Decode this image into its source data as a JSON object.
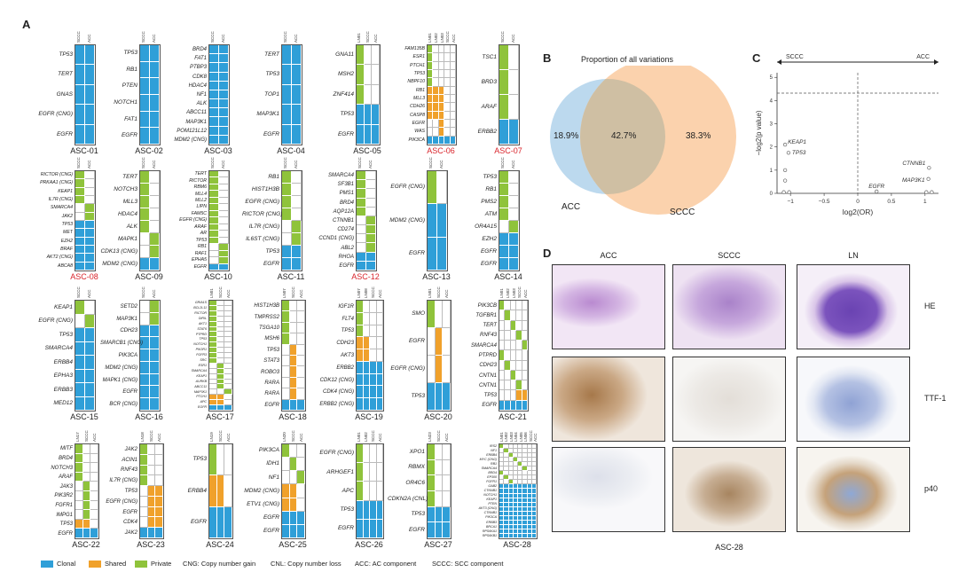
{
  "panels": {
    "A": "A",
    "B": "B",
    "C": "C",
    "D": "D"
  },
  "colors": {
    "clonal": "#2f9fd8",
    "shared": "#f0a12b",
    "private": "#8fc33b",
    "empty": "#ffffff"
  },
  "cases": [
    {
      "id": "ASC-01",
      "highlight": false,
      "cols": [
        "SCCC",
        "ACC"
      ],
      "genes": [
        "TP53",
        "TERT",
        "GNAS",
        "EGFR (CNG)",
        "EGFR"
      ],
      "rows": [
        "CC",
        "CC",
        "CC",
        "CC",
        "CC"
      ]
    },
    {
      "id": "ASC-02",
      "highlight": false,
      "cols": [
        "SCCC",
        "ACC"
      ],
      "genes": [
        "TP53",
        "RB1",
        "PTEN",
        "NOTCH1",
        "FAT1",
        "EGFR"
      ],
      "rows": [
        "CC",
        "CC",
        "CC",
        "CC",
        "CC",
        "CC"
      ]
    },
    {
      "id": "ASC-03",
      "highlight": false,
      "cols": [
        "SCCC",
        "ACC"
      ],
      "genes": [
        "BRD4",
        "FAT1",
        "PTBP3",
        "CDK8",
        "HDAC4",
        "NF1",
        "ALK",
        "ABCC11",
        "MAP3K1",
        "POM121L12",
        "MDM2 (CNG)"
      ],
      "rows": [
        "CC",
        "CC",
        "CC",
        "CC",
        "CC",
        "CC",
        "CC",
        "CC",
        "CC",
        "CC",
        "CC"
      ]
    },
    {
      "id": "ASC-04",
      "highlight": false,
      "cols": [
        "SCCC",
        "ACC"
      ],
      "genes": [
        "TERT",
        "TP53",
        "TOP1",
        "MAP3K1",
        "EGFR"
      ],
      "rows": [
        "CC",
        "CC",
        "CC",
        "CC",
        "CC"
      ]
    },
    {
      "id": "ASC-05",
      "highlight": false,
      "cols": [
        "LN01",
        "SCCC",
        "ACC"
      ],
      "genes": [
        "GNA11",
        "MSH2",
        "ZNF414",
        "TP53",
        "EGFR"
      ],
      "rows": [
        "P00",
        "P00",
        "P00",
        "CCC",
        "CCC"
      ]
    },
    {
      "id": "ASC-06",
      "highlight": true,
      "cols": [
        "LN01",
        "LN02",
        "LN03",
        "SCCC",
        "ACC"
      ],
      "genes": [
        "FAM135B",
        "ESR1",
        "PTCH1",
        "TP53",
        "NBPF10",
        "RB1",
        "MLL3",
        "CDH26",
        "CASP8",
        "EGFR",
        "WAS",
        "PIK3CA"
      ],
      "rows": [
        "P0000",
        "P0000",
        "P0000",
        "P0000",
        "P0000",
        "SSS00",
        "SSS00",
        "SSS00",
        "SSS00",
        "00S00",
        "00S00",
        "CCCCC"
      ]
    },
    {
      "id": "ASC-07",
      "highlight": true,
      "cols": [
        "SCCC",
        "ACC"
      ],
      "genes": [
        "TSC1",
        "BRD3",
        "ARAF",
        "ERBB2"
      ],
      "rows": [
        "P0",
        "P0",
        "P0",
        "CC"
      ]
    },
    {
      "id": "ASC-08",
      "highlight": true,
      "cols": [
        "SCCC",
        "ACC"
      ],
      "genes": [
        "RICTOR (CNG)",
        "PRKAA1 (CNG)",
        "KEAP1",
        "IL7R (CNG)",
        "SMARCA4",
        "JAK2",
        "TP53",
        "MET",
        "EZH2",
        "BRAF",
        "AKT2 (CNG)",
        "ABCA8"
      ],
      "rows": [
        "P0",
        "P0",
        "P0",
        "P0",
        "0P",
        "0P",
        "CC",
        "CC",
        "CC",
        "CC",
        "CC",
        "CC"
      ]
    },
    {
      "id": "ASC-09",
      "highlight": false,
      "cols": [
        "SCCC",
        "ACC"
      ],
      "genes": [
        "TERT",
        "NOTCH3",
        "MLL3",
        "HDAC4",
        "ALK",
        "MAPK1",
        "CDK13 (CNG)",
        "MDM2 (CNG)"
      ],
      "rows": [
        "P0",
        "P0",
        "P0",
        "P0",
        "P0",
        "0P",
        "0P",
        "CC"
      ]
    },
    {
      "id": "ASC-10",
      "highlight": false,
      "cols": [
        "SCCC",
        "ACC"
      ],
      "genes": [
        "TERT",
        "RICTOR",
        "RBM6",
        "MLL4",
        "MLL2",
        "LIPN",
        "FAM5C",
        "EGFR (CNG)",
        "ARAF",
        "AR",
        "TP53",
        "RB1",
        "RAF1",
        "EPHA5",
        "EGFR"
      ],
      "rows": [
        "P0",
        "P0",
        "P0",
        "P0",
        "P0",
        "P0",
        "P0",
        "P0",
        "P0",
        "P0",
        "P0",
        "0P",
        "0P",
        "0P",
        "CC"
      ]
    },
    {
      "id": "ASC-11",
      "highlight": false,
      "cols": [
        "SCCC",
        "ACC"
      ],
      "genes": [
        "RB1",
        "HIST1H3B",
        "EGFR (CNG)",
        "RICTOR (CNG)",
        "IL7R (CNG)",
        "IL6ST (CNG)",
        "TP53",
        "EGFR"
      ],
      "rows": [
        "P0",
        "P0",
        "P0",
        "P0",
        "0P",
        "0P",
        "CC",
        "CC"
      ]
    },
    {
      "id": "ASC-12",
      "highlight": true,
      "cols": [
        "SCCC",
        "ACC"
      ],
      "genes": [
        "SMARCA4",
        "SF3B1",
        "PMS1",
        "BRD4",
        "AQP12A",
        "CTNNB1",
        "CD274",
        "CCND1 (CNG)",
        "ABL2",
        "RHOA",
        "EGFR"
      ],
      "rows": [
        "P0",
        "P0",
        "P0",
        "P0",
        "P0",
        "0P",
        "0P",
        "0P",
        "0P",
        "CC",
        "CC"
      ]
    },
    {
      "id": "ASC-13",
      "highlight": false,
      "cols": [
        "SCCC",
        "ACC"
      ],
      "genes": [
        "EGFR (CNG)",
        "MDM2 (CNG)",
        "EGFR"
      ],
      "rows": [
        "P0",
        "CC",
        "CC"
      ]
    },
    {
      "id": "ASC-14",
      "highlight": false,
      "cols": [
        "SCCC",
        "ACC"
      ],
      "genes": [
        "TP53",
        "RB1",
        "PMS2",
        "ATM",
        "OR4A15",
        "EZH2",
        "EGFR",
        "EGFR"
      ],
      "rows": [
        "P0",
        "P0",
        "P0",
        "P0",
        "0P",
        "CC",
        "CC",
        "CC"
      ]
    },
    {
      "id": "ASC-15",
      "highlight": false,
      "cols": [
        "SCCC",
        "ACC"
      ],
      "genes": [
        "KEAP1",
        "EGFR (CNG)",
        "TP53",
        "SMARCA4",
        "ERBB4",
        "EPHA3",
        "ERBB3",
        "MED12"
      ],
      "rows": [
        "P0",
        "0P",
        "CC",
        "CC",
        "CC",
        "CC",
        "CC",
        "CC"
      ]
    },
    {
      "id": "ASC-16",
      "highlight": false,
      "cols": [
        "SCCC",
        "ACC"
      ],
      "genes": [
        "SETD2",
        "MAP3K1",
        "CDH23",
        "SMARCB1 (CNG)",
        "PIK3CA",
        "MDM2 (CNG)",
        "MAPK1 (CNG)",
        "EGFR",
        "BCR (CNG)"
      ],
      "rows": [
        "0P",
        "0P",
        "CC",
        "CC",
        "CC",
        "CC",
        "CC",
        "CC",
        "CC"
      ]
    },
    {
      "id": "ASC-17",
      "highlight": false,
      "cols": [
        "LN01",
        "SCCC",
        "ACC"
      ],
      "genes": [
        "GRIA1S",
        "BCL2L11",
        "RICTOR",
        "DIRIL",
        "AKT1",
        "STAT6",
        "PTPRD",
        "TP53",
        "NOTCH1",
        "PIK3R1",
        "FGFR3",
        "SRC",
        "ESR1",
        "SMARCA4",
        "KEAP1",
        "AURKB",
        "ABCC11",
        "MAP3K1",
        "PTCH1",
        "APC",
        "EGFR"
      ],
      "rows": [
        "P00",
        "P00",
        "P00",
        "P00",
        "P00",
        "P00",
        "P00",
        "P00",
        "P00",
        "P00",
        "P00",
        "P00",
        "0P0",
        "0P0",
        "0P0",
        "0P0",
        "0P0",
        "00P",
        "SS0",
        "SS0",
        "CCC"
      ]
    },
    {
      "id": "ASC-18",
      "highlight": false,
      "cols": [
        "LN07",
        "SCCC",
        "ACC"
      ],
      "genes": [
        "HIST1H3B",
        "TMPRSS2",
        "TSGA10",
        "MSH6",
        "TP53",
        "STAT3",
        "ROBO3",
        "RARA",
        "RARA",
        "EGFR"
      ],
      "rows": [
        "P00",
        "P00",
        "P00",
        "P00",
        "0S0",
        "0S0",
        "0S0",
        "0S0",
        "0S0",
        "CCC"
      ]
    },
    {
      "id": "ASC-19",
      "highlight": false,
      "cols": [
        "LN07",
        "LN08",
        "SCCC",
        "ACC"
      ],
      "genes": [
        "IGF1R",
        "FLT4",
        "TP53",
        "CDH23",
        "AKT3",
        "ERBB2",
        "CDK12 (CNG)",
        "CDK4 (CNG)",
        "ERBB2 (CNG)"
      ],
      "rows": [
        "P000",
        "P000",
        "P000",
        "SS00",
        "SS00",
        "CCCC",
        "CCCC",
        "CCCC",
        "CCCC"
      ]
    },
    {
      "id": "ASC-20",
      "highlight": false,
      "cols": [
        "LN01",
        "SCCC",
        "ACC"
      ],
      "genes": [
        "SMO",
        "EGFR",
        "EGFR (CNG)",
        "TP53"
      ],
      "rows": [
        "P00",
        "0S0",
        "0S0",
        "CCC"
      ]
    },
    {
      "id": "ASC-21",
      "highlight": false,
      "cols": [
        "LN01",
        "LN02",
        "LN03",
        "SCCC",
        "ACC"
      ],
      "genes": [
        "PIK3CB",
        "TGFBR1",
        "TERT",
        "RNF43",
        "SMARCA4",
        "PTPRD",
        "CDH23",
        "CNTN1",
        "CNTN1",
        "TP53",
        "EGFR"
      ],
      "rows": [
        "P0000",
        "0P000",
        "00P00",
        "000P0",
        "0000P",
        "P0000",
        "0P000",
        "00P00",
        "000P0",
        "000SS",
        "CCCCC"
      ]
    },
    {
      "id": "ASC-22",
      "highlight": false,
      "cols": [
        "LN17",
        "SCCC",
        "ACC"
      ],
      "genes": [
        "MITF",
        "BRD4",
        "NOTCH3",
        "ARAF",
        "JAK3",
        "PIK3R2",
        "FGFR1",
        "IMPG1",
        "TP53",
        "EGFR"
      ],
      "rows": [
        "P00",
        "P00",
        "P00",
        "P00",
        "0P0",
        "0P0",
        "0P0",
        "0P0",
        "SS0",
        "CCC"
      ]
    },
    {
      "id": "ASC-23",
      "highlight": false,
      "cols": [
        "LN18",
        "SCCC",
        "ACC"
      ],
      "genes": [
        "JAK2",
        "ACIN1",
        "RNF43",
        "IL7R (CNG)",
        "TP53",
        "EGFR (CNG)",
        "EGFR",
        "CDK4",
        "JAK2"
      ],
      "rows": [
        "P00",
        "P00",
        "P00",
        "P00",
        "0SS",
        "0SS",
        "0SS",
        "0SS",
        "CCC"
      ]
    },
    {
      "id": "ASC-24",
      "highlight": false,
      "cols": [
        "LN19",
        "SCCC",
        "ACC"
      ],
      "genes": [
        "TP53",
        "ERBB4",
        "EGFR"
      ],
      "rows": [
        "P00",
        "SS0",
        "CCC"
      ]
    },
    {
      "id": "ASC-25",
      "highlight": false,
      "cols": [
        "LN20",
        "SCCC",
        "ACC"
      ],
      "genes": [
        "PIK3CA",
        "IDH1",
        "NF1",
        "MDM2 (CNG)",
        "ETV1 (CNG)",
        "EGFR",
        "EGFR"
      ],
      "rows": [
        "P00",
        "0P0",
        "00P",
        "SS0",
        "SS0",
        "CCC",
        "CCC"
      ]
    },
    {
      "id": "ASC-26",
      "highlight": false,
      "cols": [
        "LN01",
        "LN02",
        "SCCC",
        "ACC"
      ],
      "genes": [
        "EGFR (CNG)",
        "ARHGEF1",
        "APC",
        "TP53",
        "EGFR"
      ],
      "rows": [
        "P000",
        "P000",
        "P000",
        "CCCC",
        "CCCC"
      ]
    },
    {
      "id": "ASC-27",
      "highlight": false,
      "cols": [
        "LN23",
        "SCCC",
        "ACC"
      ],
      "genes": [
        "XPO1",
        "RBMX",
        "OR4C6",
        "CDKN2A (CNL)",
        "TP53",
        "EGFR"
      ],
      "rows": [
        "P00",
        "P00",
        "P00",
        "P00",
        "CCC",
        "CCC"
      ]
    },
    {
      "id": "ASC-28",
      "highlight": false,
      "cols": [
        "LN01",
        "LN02",
        "LN03",
        "LN04",
        "LN05",
        "LN06",
        "SCCC",
        "ACC"
      ],
      "genes": [
        "IRS2",
        "NF1",
        "ERBB4",
        "MYC (CNG)",
        "RB1",
        "SMARCA4",
        "BRD4",
        "EP300",
        "FGFR1",
        "GAB2",
        "CTNNB1",
        "NOTCH1",
        "KEAP1",
        "PTEN",
        "AKT3 (CNG)",
        "CTNNB1",
        "PIK3CA",
        "ERBB3",
        "BRCA1",
        "RPS6KA1",
        "RPS6KB1"
      ],
      "rows": [
        "P0000000",
        "0P000000",
        "00P00000",
        "000P0000",
        "0000P000",
        "00000P00",
        "P0000000",
        "0P000000",
        "00P00000",
        "CCCCCCCC",
        "CCCCCCCC",
        "CCCCCCCC",
        "CCCCCCCC",
        "CCCCCCCC",
        "CCCCCCCC",
        "CCCCCCCC",
        "CCCCCCCC",
        "CCCCCCCC",
        "CCCCCCCC",
        "CCCCCCCC",
        "CCCCCCCC"
      ]
    }
  ],
  "legend": {
    "clonal": "Clonal",
    "shared": "Shared",
    "private": "Private",
    "cng": "CNG: Copy number gain",
    "cnl": "CNL: Copy number loss",
    "acc": "ACC: AC component",
    "sccc": "SCCC: SCC component"
  },
  "venn": {
    "title": "Proportion of all variations",
    "left_label": "ACC",
    "right_label": "SCCC",
    "left_pct": "18.9%",
    "mid_pct": "42.7%",
    "right_pct": "38.3%",
    "left_color": "#bcd9ee",
    "right_color": "#fbd2ad",
    "overlap_color": "#cfbfa3"
  },
  "volcano": {
    "arrow_left": "SCCC",
    "arrow_right": "ACC",
    "ylabel": "−log2(p value)",
    "xlabel": "log2(OR)",
    "yticks": [
      "0",
      "1",
      "2",
      "3",
      "4",
      "5"
    ],
    "xticks": [
      "−1",
      "−0.5",
      "0",
      "0.5",
      "1"
    ],
    "labels": {
      "keap1": "KEAP1",
      "tp53": "TP53",
      "ctnnb1": "CTNNB1",
      "map3k1": "MAP3K1",
      "egfr": "EGFR"
    }
  },
  "chart_data": {
    "type": "scatter",
    "title": "",
    "xlabel": "log2(OR)",
    "ylabel": "−log2(p value)",
    "xlim": [
      -1.2,
      1.2
    ],
    "ylim": [
      0,
      5.2
    ],
    "threshold_y": 4.32,
    "threshold_x": 0,
    "points": [
      {
        "x": -1.08,
        "y": 2.1,
        "label": "KEAP1"
      },
      {
        "x": -1.03,
        "y": 1.75,
        "label": "TP53"
      },
      {
        "x": -1.08,
        "y": 1.0,
        "label": ""
      },
      {
        "x": -1.08,
        "y": 0.55,
        "label": ""
      },
      {
        "x": -1.1,
        "y": 0.05,
        "label": ""
      },
      {
        "x": -1.02,
        "y": 0.05,
        "label": ""
      },
      {
        "x": 0.28,
        "y": 0.08,
        "label": "EGFR"
      },
      {
        "x": 1.06,
        "y": 1.1,
        "label": "CTNNB1"
      },
      {
        "x": 1.05,
        "y": 0.62,
        "label": "MAP3K1"
      },
      {
        "x": 1.02,
        "y": 0.05,
        "label": ""
      },
      {
        "x": 1.1,
        "y": 0.05,
        "label": ""
      }
    ]
  },
  "micro": {
    "col_titles": [
      "ACC",
      "SCCC",
      "LN"
    ],
    "row_labels": [
      "HE",
      "TTF-1",
      "p40"
    ],
    "caption": "ASC-28"
  }
}
